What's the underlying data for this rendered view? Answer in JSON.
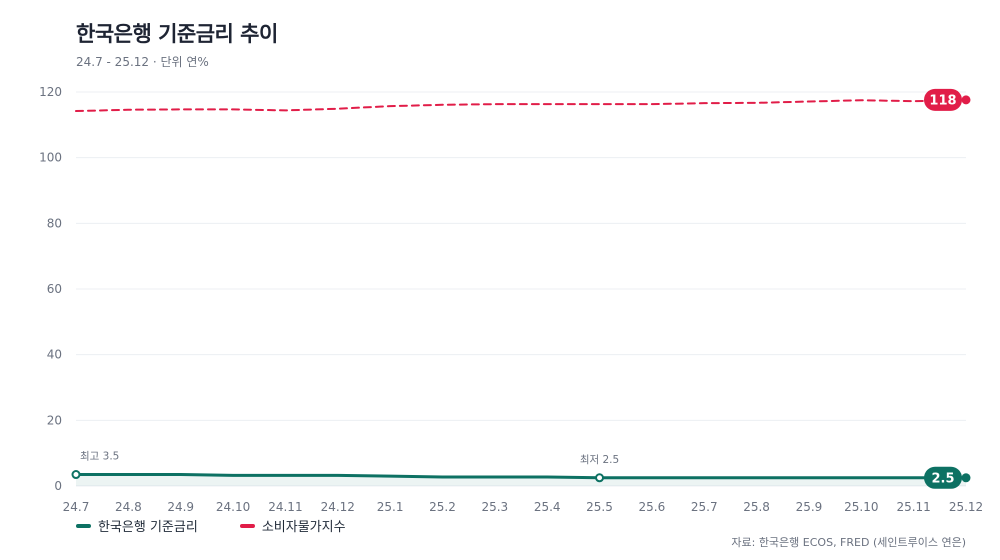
{
  "header": {
    "title": "한국은행 기준금리 추이",
    "subtitle": "24.7 - 25.12 · 단위 연%"
  },
  "source": "자료: 한국은행 ECOS, FRED (세인트루이스 연은)",
  "colors": {
    "rate": "#0d7163",
    "cpi": "#e11d48",
    "grid": "#eceff3",
    "axis_text": "#6b7280"
  },
  "chart_data": {
    "type": "line",
    "x": [
      "24.7",
      "24.8",
      "24.9",
      "24.10",
      "24.11",
      "24.12",
      "25.1",
      "25.2",
      "25.3",
      "25.4",
      "25.5",
      "25.6",
      "25.7",
      "25.8",
      "25.9",
      "25.10",
      "25.11",
      "25.12"
    ],
    "ylim": [
      0,
      120
    ],
    "yticks": [
      0,
      20,
      40,
      60,
      80,
      100,
      120
    ],
    "grid": true,
    "legend_position": "bottom-left",
    "series": [
      {
        "name": "한국은행 기준금리",
        "color": "#0d7163",
        "style": "solid",
        "values": [
          3.5,
          3.5,
          3.5,
          3.25,
          3.25,
          3.25,
          3.0,
          2.75,
          2.75,
          2.75,
          2.5,
          2.5,
          2.5,
          2.5,
          2.5,
          2.5,
          2.5,
          2.5
        ],
        "end_label": "2.5"
      },
      {
        "name": "소비자물가지수",
        "color": "#e11d48",
        "style": "dashed",
        "values": [
          114.2,
          114.6,
          114.7,
          114.7,
          114.4,
          114.9,
          115.7,
          116.1,
          116.3,
          116.3,
          116.3,
          116.3,
          116.6,
          116.7,
          117.1,
          117.5,
          117.2,
          117.6
        ],
        "end_label": "118"
      }
    ],
    "annotations": [
      {
        "text": "최고 3.5",
        "x": "24.7",
        "y": 3.5
      },
      {
        "text": "최저 2.5",
        "x": "25.5",
        "y": 2.5
      }
    ]
  }
}
